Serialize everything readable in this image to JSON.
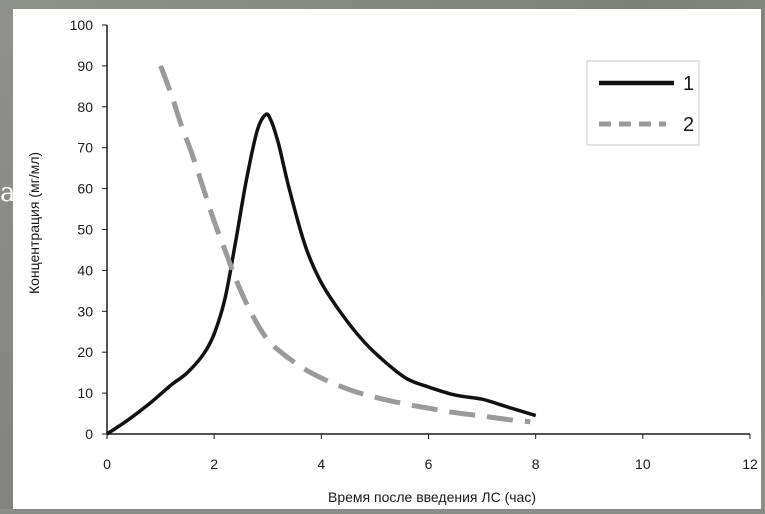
{
  "background_fragment": "а.",
  "chart_data": {
    "type": "line",
    "xlabel": "Время после введения ЛС (час)",
    "ylabel": "Концентрация (мг/мл)",
    "xlim": [
      0,
      12
    ],
    "ylim": [
      0,
      100
    ],
    "xticks": [
      0,
      2,
      4,
      6,
      8,
      10,
      12
    ],
    "yticks": [
      0,
      10,
      20,
      30,
      40,
      50,
      60,
      70,
      80,
      90,
      100
    ],
    "grid": false,
    "legend_position": "top-right",
    "series": [
      {
        "name": "1",
        "style": "solid",
        "color": "#111111",
        "x": [
          0,
          0.4,
          0.8,
          1.2,
          1.5,
          1.8,
          2.0,
          2.2,
          2.4,
          2.6,
          2.8,
          2.95,
          3.05,
          3.2,
          3.4,
          3.7,
          4.0,
          4.4,
          4.8,
          5.2,
          5.6,
          6.0,
          6.5,
          7.0,
          7.5,
          8.0
        ],
        "y": [
          0,
          3.5,
          7.5,
          12,
          15,
          19.5,
          24.5,
          33,
          47,
          62,
          74,
          78,
          77,
          71,
          60,
          46,
          37,
          29,
          22.5,
          17.5,
          13.5,
          11.5,
          9.5,
          8.5,
          6.5,
          4.5
        ]
      },
      {
        "name": "2",
        "style": "dashed",
        "color": "#9a9a9a",
        "x": [
          1.0,
          1.2,
          1.4,
          1.6,
          1.8,
          2.0,
          2.2,
          2.4,
          2.6,
          2.8,
          3.0,
          3.2,
          3.5,
          3.8,
          4.2,
          4.6,
          5.0,
          5.5,
          6.0,
          6.5,
          7.0,
          7.5,
          7.9
        ],
        "y": [
          90,
          83,
          75,
          68,
          60,
          52,
          45,
          38,
          32,
          27,
          23,
          20.5,
          17.5,
          15,
          12.5,
          10.5,
          9,
          7.5,
          6.3,
          5.2,
          4.4,
          3.5,
          3
        ]
      }
    ]
  }
}
